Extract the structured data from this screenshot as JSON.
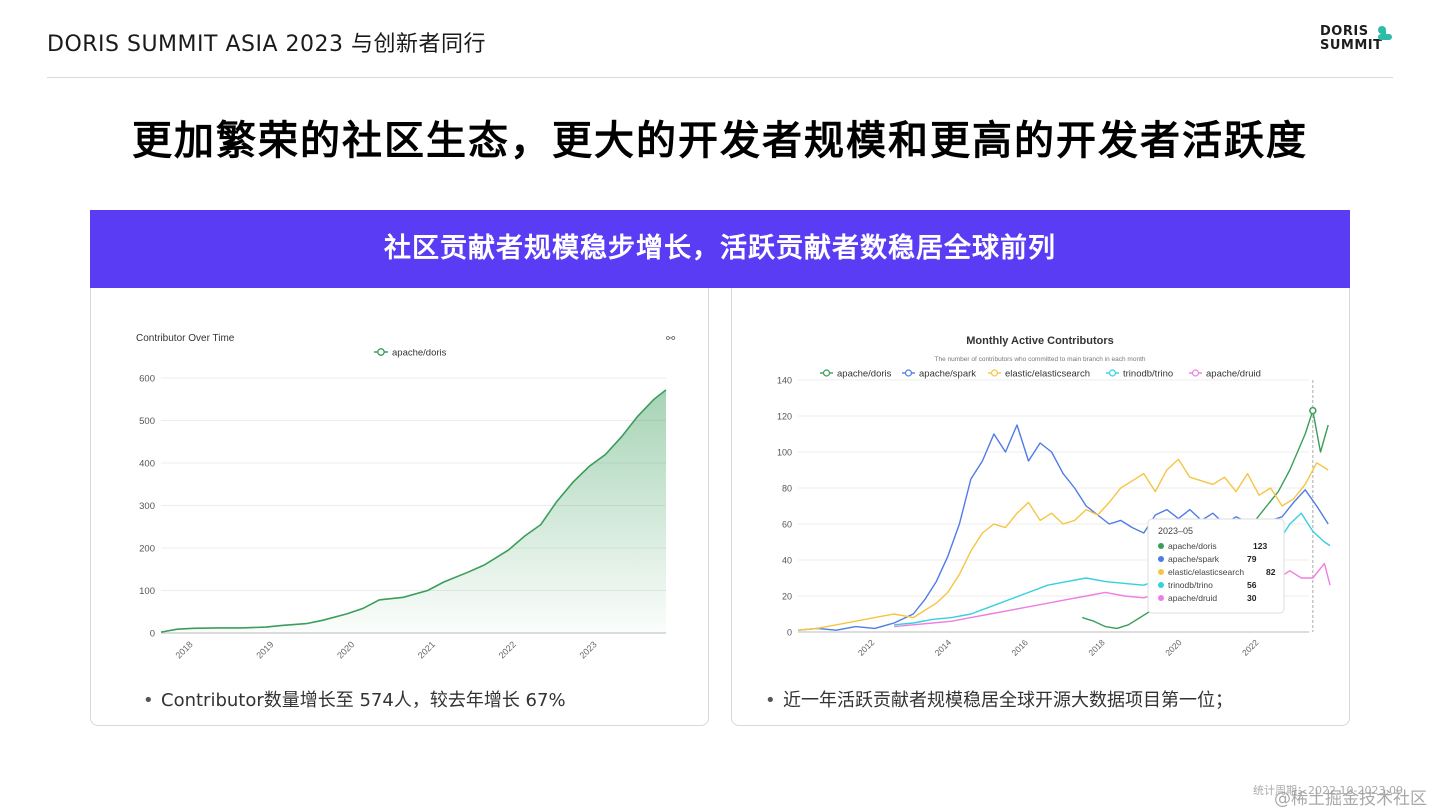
{
  "header": {
    "title": "DORIS SUMMIT ASIA 2023  与创新者同行",
    "logo_line1": "DORIS",
    "logo_line2": "SUMMIT"
  },
  "main_title": "更加繁荣的社区生态，更大的开发者规模和更高的开发者活跃度",
  "banner": "社区贡献者规模稳步增长，活跃贡献者数稳居全球前列",
  "left_card": {
    "bullet": "Contributor数量增长至 574人，较去年增长 67%"
  },
  "right_card": {
    "bullet": "近一年活跃贡献者规模稳居全球开源大数据项目第一位；"
  },
  "footnote": "统计周期：2022.10-2023.09",
  "watermark": "@稀土掘金技术社区",
  "colors": {
    "banner": "#5a3cf5",
    "doris": "#3a9e5a",
    "spark": "#4f7be8",
    "elasticsearch": "#f5c542",
    "trino": "#35d0e0",
    "druid": "#f07ee0"
  },
  "chart_data": [
    {
      "type": "area",
      "title": "Contributor Over Time",
      "series": [
        {
          "name": "apache/doris"
        }
      ],
      "ylim": [
        0,
        600
      ],
      "yticks": [
        0,
        100,
        200,
        300,
        400,
        500,
        600
      ],
      "xticks": [
        "2018",
        "2019",
        "2020",
        "2021",
        "2022",
        "2023"
      ],
      "x": [
        2017.6,
        2017.8,
        2018.0,
        2018.3,
        2018.6,
        2018.9,
        2019.1,
        2019.4,
        2019.6,
        2019.9,
        2020.1,
        2020.3,
        2020.6,
        2020.9,
        2021.1,
        2021.4,
        2021.6,
        2021.9,
        2022.1,
        2022.3,
        2022.5,
        2022.7,
        2022.9,
        2023.1,
        2023.3,
        2023.5,
        2023.7,
        2023.85
      ],
      "values": [
        2,
        9,
        11,
        12,
        12,
        14,
        18,
        22,
        30,
        45,
        58,
        78,
        84,
        100,
        120,
        143,
        160,
        195,
        228,
        255,
        310,
        355,
        392,
        420,
        462,
        510,
        550,
        572
      ],
      "grid": true,
      "legend": "top-center"
    },
    {
      "type": "line",
      "title": "Monthly Active Contributors",
      "subtitle": "The number of contributors who committed to main branch in each month",
      "ylim": [
        0,
        140
      ],
      "yticks": [
        0,
        20,
        40,
        60,
        80,
        100,
        120,
        140
      ],
      "xticks": [
        "2012",
        "2014",
        "2016",
        "2018",
        "2020",
        "2022"
      ],
      "xlim": [
        2010.0,
        2023.3
      ],
      "legend": "top",
      "tooltip": {
        "title": "2023–05",
        "items": [
          {
            "name": "apache/doris",
            "value": "123"
          },
          {
            "name": "apache/spark",
            "value": "79"
          },
          {
            "name": "elastic/elasticsearch",
            "value": "82"
          },
          {
            "name": "trinodb/trino",
            "value": "56"
          },
          {
            "name": "apache/druid",
            "value": "30"
          }
        ]
      },
      "series": [
        {
          "name": "apache/doris",
          "x": [
            2017.4,
            2017.7,
            2018.0,
            2018.3,
            2018.6,
            2018.9,
            2019.2,
            2019.5,
            2019.8,
            2020.1,
            2020.4,
            2020.7,
            2021.0,
            2021.3,
            2021.6,
            2021.9,
            2022.2,
            2022.5,
            2022.8,
            2023.0,
            2023.2,
            2023.4,
            2023.6,
            2023.8
          ],
          "values": [
            8,
            6,
            3,
            2,
            4,
            8,
            12,
            16,
            20,
            24,
            30,
            36,
            40,
            46,
            55,
            62,
            70,
            78,
            90,
            100,
            110,
            123,
            100,
            115
          ]
        },
        {
          "name": "apache/spark",
          "x": [
            2010.0,
            2010.5,
            2011.0,
            2011.5,
            2012.0,
            2012.5,
            2013.0,
            2013.3,
            2013.6,
            2013.9,
            2014.2,
            2014.5,
            2014.8,
            2015.1,
            2015.4,
            2015.7,
            2016.0,
            2016.3,
            2016.6,
            2016.9,
            2017.2,
            2017.5,
            2017.8,
            2018.1,
            2018.4,
            2018.7,
            2019.0,
            2019.3,
            2019.6,
            2019.9,
            2020.2,
            2020.5,
            2020.8,
            2021.1,
            2021.4,
            2021.7,
            2022.0,
            2022.3,
            2022.6,
            2022.9,
            2023.2,
            2023.5,
            2023.8
          ],
          "values": [
            1,
            2,
            1,
            3,
            2,
            5,
            10,
            18,
            28,
            42,
            60,
            85,
            95,
            110,
            100,
            115,
            95,
            105,
            100,
            88,
            80,
            70,
            65,
            60,
            62,
            58,
            55,
            65,
            68,
            63,
            68,
            62,
            66,
            60,
            64,
            61,
            58,
            62,
            64,
            72,
            79,
            70,
            60
          ]
        },
        {
          "name": "elastic/elasticsearch",
          "x": [
            2010.0,
            2010.5,
            2011.0,
            2011.5,
            2012.0,
            2012.5,
            2013.0,
            2013.3,
            2013.6,
            2013.9,
            2014.2,
            2014.5,
            2014.8,
            2015.1,
            2015.4,
            2015.7,
            2016.0,
            2016.3,
            2016.6,
            2016.9,
            2017.2,
            2017.5,
            2017.8,
            2018.1,
            2018.4,
            2018.7,
            2019.0,
            2019.3,
            2019.6,
            2019.9,
            2020.2,
            2020.5,
            2020.8,
            2021.1,
            2021.4,
            2021.7,
            2022.0,
            2022.3,
            2022.6,
            2022.9,
            2023.2,
            2023.5,
            2023.8
          ],
          "values": [
            1,
            2,
            4,
            6,
            8,
            10,
            8,
            12,
            16,
            22,
            32,
            45,
            55,
            60,
            58,
            66,
            72,
            62,
            66,
            60,
            62,
            68,
            65,
            72,
            80,
            84,
            88,
            78,
            90,
            96,
            86,
            84,
            82,
            86,
            78,
            88,
            76,
            80,
            70,
            74,
            82,
            94,
            90
          ]
        },
        {
          "name": "trinodb/trino",
          "x": [
            2012.5,
            2013.0,
            2013.5,
            2014.0,
            2014.5,
            2015.0,
            2015.5,
            2016.0,
            2016.5,
            2017.0,
            2017.5,
            2018.0,
            2018.5,
            2019.0,
            2019.5,
            2020.0,
            2020.5,
            2021.0,
            2021.5,
            2022.0,
            2022.5,
            2022.8,
            2023.1,
            2023.4,
            2023.7,
            2023.85
          ],
          "values": [
            4,
            5,
            7,
            8,
            10,
            14,
            18,
            22,
            26,
            28,
            30,
            28,
            27,
            26,
            30,
            32,
            31,
            34,
            38,
            42,
            50,
            60,
            66,
            56,
            50,
            48
          ]
        },
        {
          "name": "apache/druid",
          "x": [
            2012.5,
            2013.0,
            2013.5,
            2014.0,
            2014.5,
            2015.0,
            2015.5,
            2016.0,
            2016.5,
            2017.0,
            2017.5,
            2018.0,
            2018.5,
            2019.0,
            2019.5,
            2020.0,
            2020.5,
            2021.0,
            2021.5,
            2022.0,
            2022.5,
            2022.8,
            2023.1,
            2023.4,
            2023.7,
            2023.85
          ],
          "values": [
            3,
            4,
            5,
            6,
            8,
            10,
            12,
            14,
            16,
            18,
            20,
            22,
            20,
            19,
            22,
            24,
            22,
            26,
            28,
            26,
            30,
            34,
            30,
            30,
            38,
            26
          ]
        }
      ]
    }
  ]
}
